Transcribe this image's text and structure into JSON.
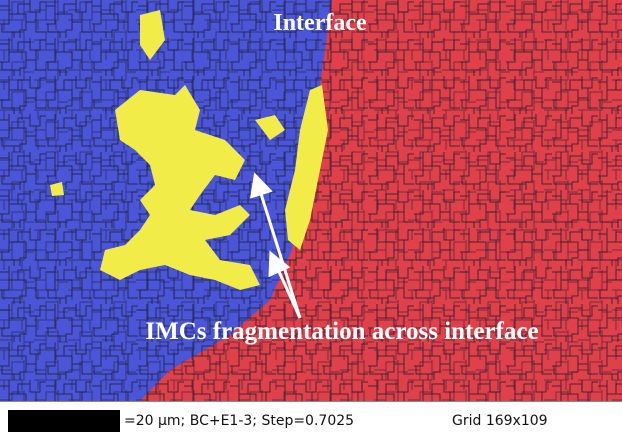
{
  "annotations": {
    "interface": "Interface",
    "fragmentation": "IMCs fragmentation across interface"
  },
  "status_bar": {
    "scale": "=20 µm; BC+E1-3; Step=0.7025",
    "grid": "Grid 169x109"
  }
}
